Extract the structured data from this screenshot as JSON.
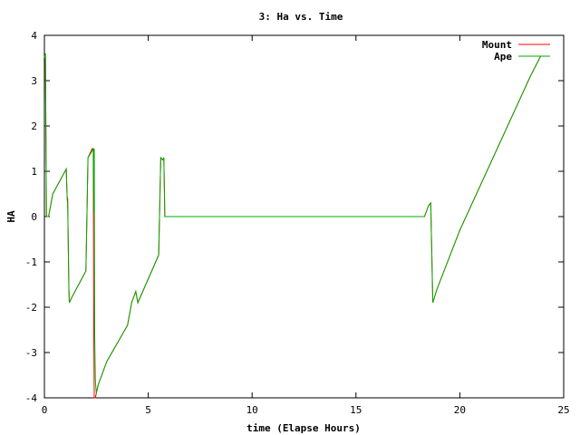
{
  "chart_data": {
    "type": "line",
    "title": "3: Ha vs. Time",
    "xlabel": "time (Elapse Hours)",
    "ylabel": "HA",
    "xlim": [
      0,
      25
    ],
    "ylim": [
      -4,
      4
    ],
    "xticks": [
      0,
      5,
      10,
      15,
      20,
      25
    ],
    "yticks": [
      -4,
      -3,
      -2,
      -1,
      0,
      1,
      2,
      3,
      4
    ],
    "grid": false,
    "legend_position": "top-right",
    "series": [
      {
        "name": "Mount",
        "color": "#ff0000",
        "x": [
          0.0,
          0.05,
          0.1,
          0.15,
          0.2,
          0.4,
          1.05,
          1.08,
          1.1,
          1.12,
          1.15,
          1.18,
          1.2,
          1.25,
          1.3,
          2.0,
          2.1,
          2.3,
          2.35,
          2.38,
          2.4,
          2.42,
          2.45,
          2.5,
          2.55,
          2.6,
          3.0,
          4.0,
          4.2,
          4.4,
          4.5,
          5.5,
          5.6,
          5.7,
          5.75,
          5.8,
          5.9,
          18.3,
          18.5,
          18.6,
          18.7,
          18.9,
          20.0,
          23.4,
          23.9
        ],
        "y": [
          3.5,
          3.6,
          0.0,
          0.0,
          0.0,
          0.5,
          1.05,
          0.6,
          0.4,
          0.4,
          -0.8,
          -1.6,
          -1.9,
          -1.85,
          -1.8,
          -1.2,
          1.3,
          1.5,
          1.5,
          -2.5,
          -4.0,
          -4.0,
          -4.0,
          -3.9,
          -3.8,
          -3.7,
          -3.2,
          -2.4,
          -1.9,
          -1.65,
          -1.9,
          -0.85,
          1.3,
          1.25,
          1.3,
          0.0,
          0.0,
          0.0,
          0.25,
          0.3,
          -1.9,
          -1.6,
          -0.3,
          3.1,
          3.55
        ]
      },
      {
        "name": "Ape",
        "color": "#00aa00",
        "x": [
          0.0,
          0.05,
          0.1,
          0.15,
          0.2,
          0.4,
          1.05,
          1.08,
          1.1,
          1.12,
          1.15,
          1.18,
          1.2,
          1.25,
          1.3,
          2.0,
          2.1,
          2.3,
          2.35,
          2.38,
          2.4,
          2.42,
          2.45,
          2.5,
          2.55,
          2.6,
          3.0,
          4.0,
          4.2,
          4.4,
          4.5,
          5.5,
          5.6,
          5.7,
          5.75,
          5.8,
          5.9,
          18.3,
          18.5,
          18.6,
          18.7,
          18.9,
          20.0,
          23.4,
          23.9
        ],
        "y": [
          3.5,
          3.6,
          0.0,
          0.0,
          0.0,
          0.5,
          1.05,
          0.6,
          0.35,
          0.3,
          -0.7,
          -1.5,
          -1.9,
          -1.85,
          -1.8,
          -1.2,
          1.3,
          1.45,
          1.5,
          0.1,
          1.5,
          -2.6,
          -3.6,
          -3.9,
          -3.8,
          -3.7,
          -3.2,
          -2.4,
          -1.9,
          -1.65,
          -1.9,
          -0.85,
          1.3,
          1.25,
          1.3,
          0.0,
          0.0,
          0.0,
          0.25,
          0.3,
          -1.9,
          -1.6,
          -0.3,
          3.1,
          3.55
        ]
      }
    ]
  }
}
